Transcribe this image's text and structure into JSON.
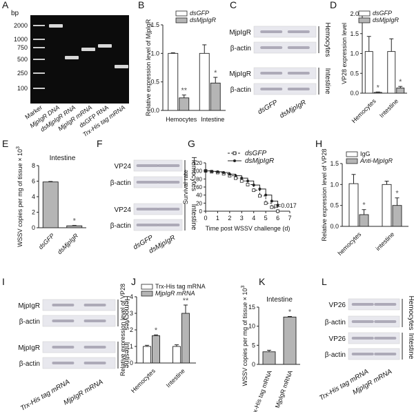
{
  "panel_labels": [
    "A",
    "B",
    "C",
    "D",
    "E",
    "F",
    "G",
    "H",
    "I",
    "J",
    "K",
    "L"
  ],
  "panelA": {
    "bp_label": "bp",
    "size_ladder": [
      "2000",
      "1000",
      "750",
      "500",
      "250",
      "100"
    ],
    "lanes": [
      "Marker",
      "MjpIgR DNA",
      "dsMjpIgR RNA",
      "MjpIgR mRNA",
      "dsGFP RNA",
      "Trx-His tag mRNA"
    ]
  },
  "blots": {
    "C": {
      "rows": [
        "MjpIgR",
        "β-actin",
        "MjpIgR",
        "β-actin"
      ],
      "groups": [
        "Hemocytes",
        "Intestine"
      ],
      "lanes": [
        "dsGFP",
        "dsMjpIgR"
      ]
    },
    "F": {
      "rows": [
        "VP24",
        "β-actin",
        "VP24",
        "β-actin"
      ],
      "groups": [
        "Hemocytes",
        "Intestine"
      ],
      "lanes": [
        "dsGFP",
        "dsMjpIgR"
      ]
    },
    "I": {
      "rows": [
        "MjpIgR",
        "β-actin",
        "MjpIgR",
        "β-actin"
      ],
      "groups": [
        "Hemocytes",
        "Intestine"
      ],
      "lanes": [
        "Trx-His tag mRNA",
        "MjpIgR mRNA"
      ]
    },
    "L": {
      "rows": [
        "VP26",
        "β-actin",
        "VP26",
        "β-actin"
      ],
      "groups": [
        "Hemocytes",
        "Intestine"
      ],
      "lanes": [
        "Trx-His tag mRNA",
        "MjpIgR mRNA"
      ]
    }
  },
  "colors": {
    "control_bar": "#ffffff",
    "treatment_bar": "#b5b5b5",
    "axis": "#222222",
    "gel_bg": "#0c0c0c",
    "band": "#d8d8d8",
    "blot_bg": "#e8e8ee",
    "blot_band": "#9a95a5"
  },
  "chart_data": [
    {
      "id": "B",
      "type": "bar",
      "ylabel": "Relative expression level of MjpIgR",
      "categories": [
        "Hemocytes",
        "Intestine"
      ],
      "ylim": [
        0,
        1.5
      ],
      "yticks": [
        "0.0",
        "0.5",
        "1.0",
        "1.5"
      ],
      "series": [
        {
          "name": "dsGFP",
          "values": [
            1.0,
            1.0
          ],
          "errors": [
            0.01,
            0.15
          ]
        },
        {
          "name": "dsMjpIgR",
          "values": [
            0.22,
            0.48
          ],
          "errors": [
            0.05,
            0.1
          ]
        }
      ],
      "annotations": [
        "**",
        "*"
      ]
    },
    {
      "id": "D",
      "type": "bar",
      "ylabel": "VP28 expression level",
      "categories": [
        "Hemocytes",
        "Intestine"
      ],
      "ylim": [
        0,
        2.0
      ],
      "yticks": [
        "0.0",
        "0.5",
        "1.0",
        "1.5",
        "2.0"
      ],
      "series": [
        {
          "name": "dsGFP",
          "values": [
            1.05,
            1.05
          ],
          "errors": [
            0.38,
            0.32
          ]
        },
        {
          "name": "dsMjpIgR",
          "values": [
            0.02,
            0.13
          ],
          "errors": [
            0.01,
            0.04
          ]
        }
      ],
      "annotations": [
        "*",
        "*"
      ]
    },
    {
      "id": "E",
      "type": "bar",
      "title": "Intestine",
      "ylabel": "WSSV copies per mg of tissue × 10",
      "ylabel_sup": "3",
      "categories": [
        "dsGFP",
        "dsMjpIgR"
      ],
      "ylim": [
        0,
        8
      ],
      "yticks": [
        "0",
        "2",
        "4",
        "6",
        "8"
      ],
      "values": [
        5.9,
        0.25
      ],
      "errors": [
        0.06,
        0.05
      ],
      "annotations": [
        "",
        "*"
      ]
    },
    {
      "id": "G",
      "type": "line",
      "ylabel": "Survival rate",
      "xlabel": "Time post WSSV challenge (d)",
      "xlim": [
        0,
        7
      ],
      "ylim": [
        0,
        120
      ],
      "xticks": [
        "0",
        "1",
        "2",
        "3",
        "4",
        "5",
        "6",
        "7"
      ],
      "yticks": [
        "0",
        "20",
        "40",
        "60",
        "80",
        "100",
        "120"
      ],
      "series": [
        {
          "name": "dsGFP",
          "x": [
            0,
            0.5,
            1,
            1.5,
            2,
            2.5,
            3,
            3.5,
            4,
            4.5,
            5,
            5.5,
            6
          ],
          "y": [
            100,
            98,
            96,
            93,
            88,
            82,
            75,
            66,
            52,
            38,
            20,
            10,
            0
          ]
        },
        {
          "name": "dsMjpIgR",
          "x": [
            0,
            0.5,
            1,
            1.5,
            2,
            2.5,
            3,
            3.5,
            4,
            4.5,
            5,
            5.5,
            6
          ],
          "y": [
            100,
            99,
            98,
            96,
            92,
            88,
            82,
            75,
            65,
            55,
            40,
            25,
            15
          ]
        }
      ],
      "annotation": "p=0.017"
    },
    {
      "id": "H",
      "type": "bar",
      "ylabel": "Relative expression level of VP28",
      "categories": [
        "hemocytes",
        "intestine"
      ],
      "ylim": [
        0,
        1.5
      ],
      "yticks": [
        "0.0",
        "0.5",
        "1.0",
        "1.5"
      ],
      "series": [
        {
          "name": "IgG",
          "values": [
            1.02,
            1.0
          ],
          "errors": [
            0.22,
            0.08
          ]
        },
        {
          "name": "Anti-MjpIgR",
          "values": [
            0.28,
            0.5
          ],
          "errors": [
            0.12,
            0.18
          ]
        }
      ],
      "annotations": [
        "*",
        "*"
      ]
    },
    {
      "id": "J",
      "type": "bar",
      "ylabel": "Relative expression level of VP28",
      "categories": [
        "Hemocytes",
        "Intestine"
      ],
      "ylim": [
        0,
        4
      ],
      "yticks": [
        "0",
        "1",
        "2",
        "3",
        "4"
      ],
      "series": [
        {
          "name": "Trx-His tag mRNA",
          "values": [
            1.0,
            1.0
          ],
          "errors": [
            0.07,
            0.1
          ]
        },
        {
          "name": "MjpIgR mRNA",
          "values": [
            1.65,
            3.0
          ],
          "errors": [
            0.05,
            0.5
          ]
        }
      ],
      "annotations": [
        "*",
        "**"
      ]
    },
    {
      "id": "K",
      "type": "bar",
      "title": "Intestine",
      "ylabel": "WSSV copies per mg of tissue × 10",
      "ylabel_sup": "3",
      "categories": [
        "Trx-His tag mRNA",
        "MjpIgR mRNA"
      ],
      "ylim": [
        0,
        15
      ],
      "yticks": [
        "0",
        "5",
        "10",
        "15"
      ],
      "values": [
        3.3,
        12.4
      ],
      "errors": [
        0.4,
        0.15
      ],
      "annotations": [
        "",
        "*"
      ]
    }
  ]
}
